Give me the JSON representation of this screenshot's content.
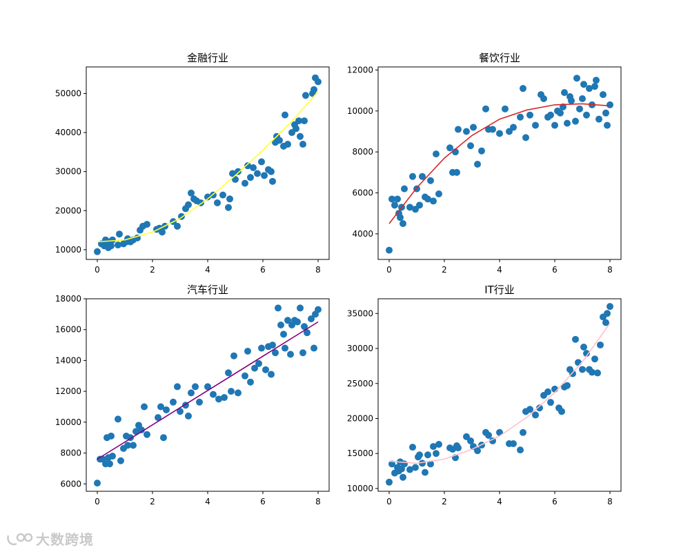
{
  "chart_data": [
    {
      "type": "scatter",
      "title": "金融行业",
      "xlim": [
        -0.4,
        8.4
      ],
      "ylim": [
        7500,
        56800
      ],
      "xticks": [
        0,
        2,
        4,
        6,
        8
      ],
      "yticks": [
        10000,
        20000,
        30000,
        40000,
        50000
      ],
      "fit_color": "#ffff33",
      "fit_curve": {
        "x": [
          0,
          1,
          2,
          3,
          4,
          5,
          6,
          7,
          8
        ],
        "y": [
          12000,
          12500,
          14500,
          18000,
          23000,
          29000,
          35500,
          42500,
          50500
        ]
      },
      "points": {
        "x": [
          0,
          0.15,
          0.25,
          0.3,
          0.35,
          0.4,
          0.45,
          0.5,
          0.55,
          0.75,
          0.8,
          0.95,
          1.05,
          1.1,
          1.2,
          1.3,
          1.45,
          1.55,
          1.65,
          1.8,
          2.15,
          2.25,
          2.35,
          2.45,
          2.75,
          2.9,
          3.05,
          3.2,
          3.3,
          3.4,
          3.5,
          3.6,
          3.75,
          4.0,
          4.2,
          4.35,
          4.55,
          4.75,
          4.8,
          4.9,
          5.0,
          5.1,
          5.35,
          5.45,
          5.55,
          5.65,
          5.8,
          5.95,
          6.05,
          6.2,
          6.3,
          6.35,
          6.45,
          6.5,
          6.6,
          6.75,
          6.8,
          6.9,
          7.05,
          7.15,
          7.2,
          7.3,
          7.35,
          7.45,
          7.5,
          7.55,
          7.8,
          7.85,
          7.9,
          8.0
        ],
        "y": [
          9500,
          11500,
          11000,
          12500,
          11800,
          10500,
          12000,
          11000,
          12500,
          11200,
          14000,
          11500,
          12000,
          12800,
          12000,
          12500,
          13000,
          15000,
          16000,
          16500,
          15200,
          15500,
          14500,
          16000,
          17200,
          16000,
          18500,
          20500,
          21500,
          24500,
          23000,
          22500,
          22000,
          23500,
          24000,
          22000,
          24000,
          20800,
          23000,
          29500,
          28000,
          30000,
          27000,
          31500,
          28500,
          31000,
          29500,
          32500,
          29000,
          30500,
          30000,
          27500,
          37500,
          39000,
          38000,
          36500,
          44500,
          37000,
          40000,
          42000,
          41000,
          43000,
          39000,
          37000,
          43000,
          49500,
          50000,
          51000,
          54000,
          53000
        ]
      }
    },
    {
      "type": "scatter",
      "title": "餐饮行业",
      "xlim": [
        -0.4,
        8.4
      ],
      "ylim": [
        2750,
        12150
      ],
      "xticks": [
        0,
        2,
        4,
        6,
        8
      ],
      "yticks": [
        4000,
        6000,
        8000,
        10000,
        12000
      ],
      "fit_color": "#d62728",
      "fit_curve": {
        "x": [
          0,
          1,
          2,
          3,
          4,
          5,
          6,
          7,
          8
        ],
        "y": [
          4500,
          6250,
          7700,
          8800,
          9600,
          10050,
          10300,
          10350,
          10250
        ]
      },
      "points": {
        "x": [
          0,
          0.1,
          0.2,
          0.3,
          0.35,
          0.4,
          0.45,
          0.5,
          0.55,
          0.75,
          0.85,
          0.95,
          1.0,
          1.1,
          1.2,
          1.3,
          1.4,
          1.5,
          1.6,
          1.7,
          1.8,
          2.2,
          2.3,
          2.4,
          2.45,
          2.5,
          2.8,
          2.95,
          3.05,
          3.2,
          3.35,
          3.5,
          3.6,
          3.75,
          4.0,
          4.2,
          4.35,
          4.5,
          4.75,
          4.85,
          4.95,
          5.1,
          5.3,
          5.5,
          5.6,
          5.75,
          5.85,
          6.0,
          6.1,
          6.2,
          6.3,
          6.35,
          6.45,
          6.55,
          6.6,
          6.75,
          6.8,
          6.9,
          7.0,
          7.05,
          7.15,
          7.25,
          7.35,
          7.45,
          7.5,
          7.6,
          7.75,
          7.85,
          7.9,
          8.0
        ],
        "y": [
          3200,
          5700,
          5400,
          5700,
          5000,
          4800,
          5300,
          4500,
          6200,
          5300,
          6800,
          5200,
          6200,
          5400,
          6800,
          5800,
          5700,
          6600,
          5600,
          7900,
          5950,
          8200,
          7000,
          8000,
          7000,
          9100,
          9000,
          8300,
          9200,
          7400,
          8050,
          10100,
          9100,
          9100,
          8900,
          10100,
          9000,
          9200,
          9700,
          11100,
          8700,
          9800,
          9300,
          10800,
          10600,
          9700,
          9800,
          9300,
          10000,
          9900,
          10200,
          10900,
          9400,
          10700,
          10500,
          9500,
          11600,
          10100,
          10600,
          11300,
          9800,
          11100,
          10300,
          11200,
          11500,
          9600,
          10800,
          9900,
          9300,
          10300
        ]
      }
    },
    {
      "type": "scatter",
      "title": "汽车行业",
      "xlim": [
        -0.4,
        8.4
      ],
      "ylim": [
        5520,
        18000
      ],
      "xticks": [
        0,
        2,
        4,
        6,
        8
      ],
      "yticks": [
        6000,
        8000,
        10000,
        12000,
        14000,
        16000,
        18000
      ],
      "fit_color": "#800080",
      "fit_curve": {
        "x": [
          0,
          8
        ],
        "y": [
          7600,
          16500
        ]
      },
      "points": {
        "x": [
          0,
          0.1,
          0.2,
          0.3,
          0.35,
          0.4,
          0.45,
          0.5,
          0.55,
          0.75,
          0.85,
          0.95,
          1.05,
          1.1,
          1.2,
          1.3,
          1.4,
          1.5,
          1.6,
          1.7,
          1.8,
          2.2,
          2.3,
          2.4,
          2.5,
          2.75,
          2.9,
          3.0,
          3.2,
          3.3,
          3.4,
          3.55,
          3.7,
          4.0,
          4.2,
          4.4,
          4.6,
          4.75,
          4.85,
          4.95,
          5.1,
          5.35,
          5.45,
          5.55,
          5.7,
          5.85,
          5.95,
          6.1,
          6.2,
          6.3,
          6.35,
          6.45,
          6.55,
          6.65,
          6.75,
          6.8,
          6.9,
          7.0,
          7.05,
          7.15,
          7.25,
          7.35,
          7.45,
          7.5,
          7.6,
          7.75,
          7.85,
          7.9,
          8.0
        ],
        "y": [
          6050,
          7600,
          7600,
          7300,
          9000,
          7700,
          7300,
          9100,
          7800,
          10200,
          7500,
          8300,
          9100,
          8500,
          9000,
          8500,
          9400,
          9800,
          9500,
          11000,
          9200,
          10300,
          11000,
          9000,
          10800,
          11300,
          12300,
          10700,
          11100,
          10400,
          11900,
          12300,
          11300,
          12300,
          11800,
          11500,
          11600,
          13200,
          12000,
          14300,
          11900,
          13000,
          14600,
          12600,
          13500,
          13800,
          14800,
          13400,
          14900,
          13100,
          15000,
          14500,
          17400,
          16300,
          15700,
          14800,
          16600,
          14400,
          16300,
          16600,
          16500,
          17400,
          14500,
          16200,
          15800,
          16700,
          14800,
          17000,
          17300
        ]
      }
    },
    {
      "type": "scatter",
      "title": "IT行业",
      "xlim": [
        -0.4,
        8.4
      ],
      "ylim": [
        9600,
        37100
      ],
      "xticks": [
        0,
        2,
        4,
        6,
        8
      ],
      "yticks": [
        10000,
        15000,
        20000,
        25000,
        30000,
        35000
      ],
      "fit_color": "#ffc0cb",
      "fit_curve": {
        "x": [
          0,
          1,
          2,
          3,
          4,
          5,
          6,
          7,
          8
        ],
        "y": [
          13900,
          13600,
          14200,
          15600,
          17500,
          20200,
          23700,
          28100,
          33600
        ]
      },
      "points": {
        "x": [
          0,
          0.1,
          0.2,
          0.3,
          0.35,
          0.4,
          0.45,
          0.5,
          0.55,
          0.75,
          0.85,
          0.95,
          1.05,
          1.1,
          1.2,
          1.3,
          1.4,
          1.5,
          1.6,
          1.7,
          1.8,
          2.2,
          2.3,
          2.4,
          2.45,
          2.5,
          2.8,
          2.95,
          3.05,
          3.2,
          3.35,
          3.5,
          3.6,
          3.75,
          4.0,
          4.35,
          4.5,
          4.75,
          4.85,
          4.95,
          5.1,
          5.3,
          5.45,
          5.6,
          5.75,
          5.85,
          6.0,
          6.15,
          6.25,
          6.35,
          6.45,
          6.55,
          6.65,
          6.75,
          6.85,
          7.0,
          7.05,
          7.15,
          7.25,
          7.35,
          7.45,
          7.55,
          7.65,
          7.75,
          7.85,
          7.9,
          8.0
        ],
        "y": [
          10900,
          13500,
          12200,
          13000,
          12500,
          13800,
          12800,
          11600,
          13500,
          12700,
          15900,
          13000,
          14500,
          14800,
          13600,
          12300,
          14800,
          13500,
          16000,
          15000,
          16300,
          15800,
          15600,
          14400,
          16100,
          15800,
          17400,
          16800,
          16000,
          15400,
          16200,
          18000,
          17600,
          16800,
          18000,
          16400,
          16400,
          15500,
          18000,
          21000,
          21300,
          20500,
          21500,
          23300,
          23800,
          22300,
          24200,
          21500,
          21000,
          24500,
          24700,
          27000,
          26400,
          31300,
          28000,
          27000,
          30200,
          29300,
          27000,
          26600,
          28500,
          26500,
          30500,
          34500,
          33700,
          35000,
          36000
        ]
      }
    }
  ],
  "watermark": {
    "text": "大数跨境",
    "icon": "tea-cup-logo-icon"
  }
}
